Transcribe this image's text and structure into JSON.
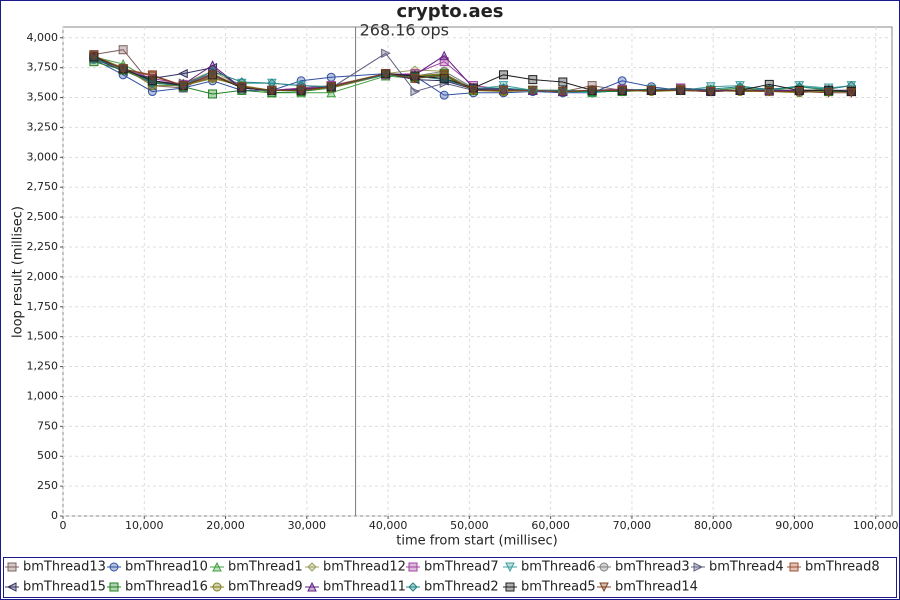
{
  "chart_data": {
    "type": "line",
    "title": "crypto.aes",
    "x_label": "time from start (millisec)",
    "y_label": "loop result (millisec)",
    "annotation": {
      "label": "268.16 ops",
      "x": 36000
    },
    "xlim": [
      0,
      102000
    ],
    "ylim": [
      0,
      4090
    ],
    "grid": true,
    "xticks": [
      0,
      {
        "value": 10000,
        "label": "10,000"
      },
      {
        "value": 20000,
        "label": "20,000"
      },
      {
        "value": 30000,
        "label": "30,000"
      },
      {
        "value": 40000,
        "label": "40,000"
      },
      {
        "value": 50000,
        "label": "50,000"
      },
      {
        "value": 60000,
        "label": "60,000"
      },
      {
        "value": 70000,
        "label": "70,000"
      },
      {
        "value": 80000,
        "label": "80,000"
      },
      {
        "value": 90000,
        "label": "90,000"
      },
      {
        "value": 100000,
        "label": "100,000"
      }
    ],
    "yticks": [
      0,
      250,
      500,
      750,
      {
        "value": 1000,
        "label": "1,000"
      },
      {
        "value": 1250,
        "label": "1,250"
      },
      {
        "value": 1500,
        "label": "1,500"
      },
      {
        "value": 1750,
        "label": "1,750"
      },
      {
        "value": 2000,
        "label": "2,000"
      },
      {
        "value": 2250,
        "label": "2,250"
      },
      {
        "value": 2500,
        "label": "2,500"
      },
      {
        "value": 2750,
        "label": "2,750"
      },
      {
        "value": 3000,
        "label": "3,000"
      },
      {
        "value": 3250,
        "label": "3,250"
      },
      {
        "value": 3500,
        "label": "3,500"
      },
      {
        "value": 3750,
        "label": "3,750"
      },
      {
        "value": 4000,
        "label": "4,000"
      }
    ],
    "x": [
      3800,
      7400,
      11000,
      14800,
      18400,
      22000,
      25700,
      29300,
      33000,
      39700,
      43300,
      46900,
      50500,
      54200,
      57800,
      61500,
      65100,
      68800,
      72400,
      76000,
      79700,
      83300,
      86900,
      90600,
      94200,
      97000
    ],
    "series": [
      {
        "name": "bmThread13",
        "color": "#806060",
        "marker": "square",
        "values": [
          3860,
          3900,
          3600,
          3580,
          3700,
          3580,
          3560,
          3560,
          3600,
          3700,
          3680,
          3700,
          3570,
          3560,
          3560,
          3550,
          3600,
          3560,
          3560,
          3580,
          3560,
          3560,
          3550,
          3560,
          3550,
          3560
        ]
      },
      {
        "name": "bmThread10",
        "color": "#3050a0",
        "marker": "circle",
        "values": [
          3820,
          3690,
          3550,
          3580,
          3640,
          3560,
          3560,
          3640,
          3670,
          3700,
          3680,
          3520,
          3540,
          3540,
          3550,
          3540,
          3540,
          3640,
          3590,
          3560,
          3560,
          3560,
          3560,
          3550,
          3560,
          3550
        ]
      },
      {
        "name": "bmThread1",
        "color": "#40a040",
        "marker": "up",
        "values": [
          3840,
          3780,
          3640,
          3600,
          3680,
          3600,
          3540,
          3540,
          3540,
          3680,
          3660,
          3680,
          3560,
          3560,
          3560,
          3560,
          3540,
          3560,
          3560,
          3560,
          3560,
          3580,
          3560,
          3590,
          3560,
          3550
        ]
      },
      {
        "name": "bmThread12",
        "color": "#a0a060",
        "marker": "diamond",
        "values": [
          3850,
          3750,
          3620,
          3620,
          3720,
          3590,
          3560,
          3580,
          3600,
          3700,
          3730,
          3720,
          3580,
          3570,
          3560,
          3560,
          3560,
          3570,
          3560,
          3570,
          3560,
          3560,
          3550,
          3560,
          3550,
          3560
        ]
      },
      {
        "name": "bmThread7",
        "color": "#a040a0",
        "marker": "square",
        "values": [
          3830,
          3740,
          3660,
          3610,
          3690,
          3580,
          3560,
          3580,
          3600,
          3690,
          3700,
          3800,
          3600,
          3570,
          3560,
          3550,
          3560,
          3570,
          3560,
          3580,
          3560,
          3560,
          3560,
          3560,
          3560,
          3550
        ]
      },
      {
        "name": "bmThread6",
        "color": "#40a0a0",
        "marker": "down",
        "values": [
          3840,
          3740,
          3640,
          3600,
          3660,
          3620,
          3620,
          3600,
          3590,
          3690,
          3670,
          3700,
          3570,
          3600,
          3560,
          3550,
          3540,
          3560,
          3570,
          3560,
          3590,
          3600,
          3560,
          3600,
          3580,
          3600
        ]
      },
      {
        "name": "bmThread3",
        "color": "#808080",
        "marker": "circle",
        "values": [
          3830,
          3740,
          3620,
          3600,
          3680,
          3590,
          3560,
          3560,
          3580,
          3690,
          3680,
          3720,
          3580,
          3570,
          3560,
          3550,
          3560,
          3560,
          3560,
          3560,
          3560,
          3560,
          3560,
          3560,
          3560,
          3560
        ]
      },
      {
        "name": "bmThread4",
        "color": "#606080",
        "marker": "right",
        "values": [
          3820,
          3730,
          3620,
          3620,
          3700,
          3580,
          3560,
          3560,
          3580,
          3870,
          3550,
          3620,
          3560,
          3570,
          3560,
          3550,
          3560,
          3560,
          3560,
          3580,
          3560,
          3560,
          3560,
          3560,
          3560,
          3550
        ]
      },
      {
        "name": "bmThread8",
        "color": "#a05030",
        "marker": "square",
        "values": [
          3850,
          3740,
          3690,
          3600,
          3670,
          3590,
          3560,
          3570,
          3590,
          3700,
          3660,
          3690,
          3570,
          3560,
          3560,
          3550,
          3560,
          3560,
          3560,
          3570,
          3560,
          3560,
          3560,
          3560,
          3560,
          3560
        ]
      },
      {
        "name": "bmThread15",
        "color": "#303060",
        "marker": "left",
        "values": [
          3830,
          3720,
          3660,
          3700,
          3750,
          3580,
          3560,
          3570,
          3590,
          3700,
          3650,
          3640,
          3570,
          3560,
          3560,
          3560,
          3550,
          3560,
          3560,
          3560,
          3560,
          3560,
          3560,
          3560,
          3560,
          3560
        ]
      },
      {
        "name": "bmThread16",
        "color": "#208020",
        "marker": "square",
        "values": [
          3800,
          3730,
          3630,
          3590,
          3530,
          3560,
          3540,
          3550,
          3580,
          3700,
          3670,
          3700,
          3560,
          3560,
          3560,
          3550,
          3550,
          3550,
          3560,
          3560,
          3560,
          3560,
          3560,
          3560,
          3550,
          3550
        ]
      },
      {
        "name": "bmThread9",
        "color": "#808020",
        "marker": "circle",
        "values": [
          3830,
          3750,
          3600,
          3600,
          3660,
          3600,
          3560,
          3560,
          3580,
          3690,
          3680,
          3700,
          3560,
          3550,
          3560,
          3550,
          3560,
          3560,
          3550,
          3560,
          3560,
          3550,
          3550,
          3540,
          3560,
          3550
        ]
      },
      {
        "name": "bmThread11",
        "color": "#602080",
        "marker": "up",
        "values": [
          3840,
          3740,
          3640,
          3610,
          3770,
          3580,
          3560,
          3570,
          3590,
          3700,
          3690,
          3850,
          3580,
          3570,
          3560,
          3550,
          3560,
          3560,
          3560,
          3570,
          3560,
          3560,
          3560,
          3560,
          3560,
          3550
        ]
      },
      {
        "name": "bmThread2",
        "color": "#208080",
        "marker": "diamond",
        "values": [
          3820,
          3750,
          3620,
          3600,
          3720,
          3630,
          3620,
          3600,
          3590,
          3690,
          3680,
          3650,
          3580,
          3580,
          3560,
          3560,
          3550,
          3560,
          3570,
          3570,
          3570,
          3590,
          3570,
          3590,
          3570,
          3600
        ]
      },
      {
        "name": "bmThread5",
        "color": "#202020",
        "marker": "square",
        "values": [
          3840,
          3740,
          3640,
          3600,
          3690,
          3580,
          3560,
          3560,
          3590,
          3700,
          3680,
          3660,
          3580,
          3690,
          3650,
          3630,
          3560,
          3560,
          3560,
          3560,
          3550,
          3560,
          3610,
          3560,
          3560,
          3550
        ]
      },
      {
        "name": "bmThread14",
        "color": "#804020",
        "marker": "down",
        "values": [
          3850,
          3740,
          3680,
          3600,
          3690,
          3590,
          3560,
          3560,
          3590,
          3700,
          3660,
          3690,
          3560,
          3560,
          3560,
          3550,
          3560,
          3560,
          3560,
          3560,
          3550,
          3560,
          3550,
          3550,
          3540,
          3540
        ]
      }
    ]
  }
}
